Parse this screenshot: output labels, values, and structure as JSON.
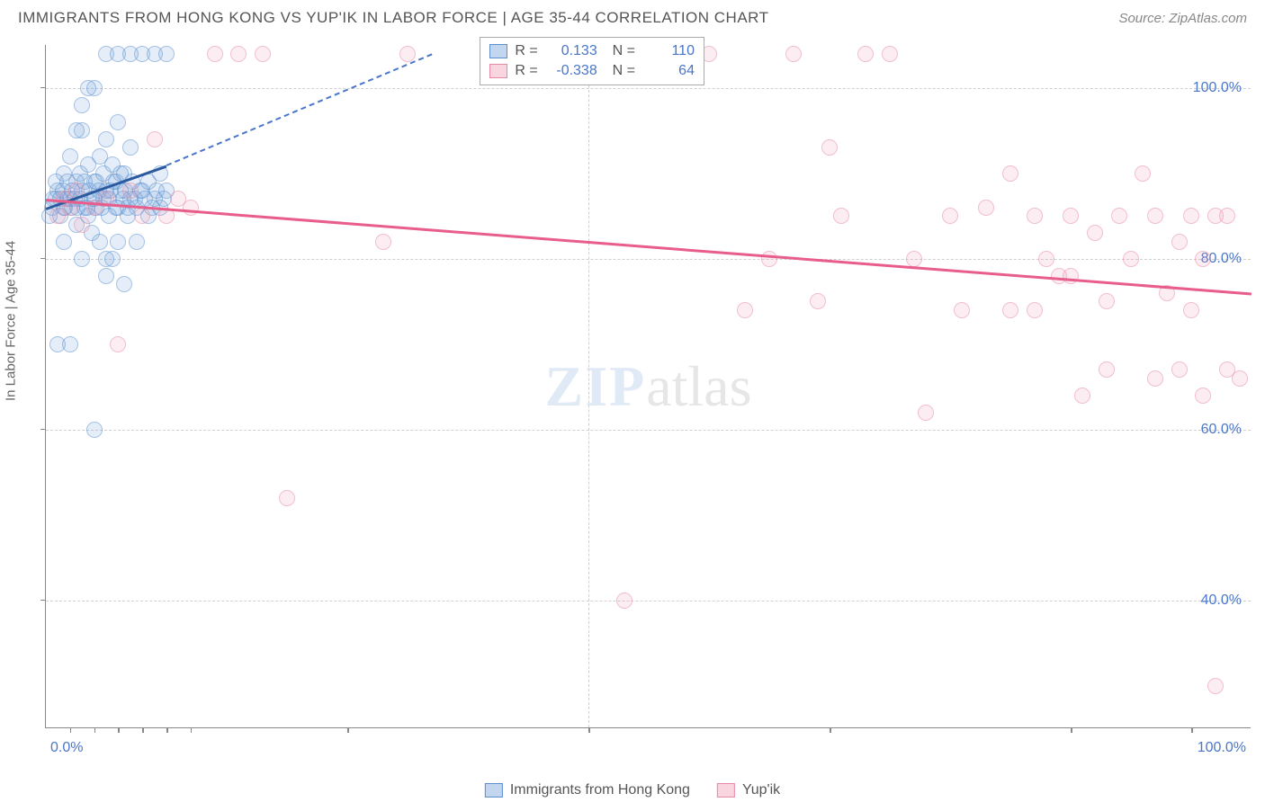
{
  "title": "IMMIGRANTS FROM HONG KONG VS YUP'IK IN LABOR FORCE | AGE 35-44 CORRELATION CHART",
  "source": "Source: ZipAtlas.com",
  "ylabel": "In Labor Force | Age 35-44",
  "watermark_zip": "ZIP",
  "watermark_atlas": "atlas",
  "chart": {
    "type": "scatter",
    "xlim": [
      0,
      100
    ],
    "ylim": [
      25,
      105
    ],
    "y_ticks": [
      40,
      60,
      80,
      100
    ],
    "y_tick_labels": [
      "40.0%",
      "60.0%",
      "80.0%",
      "100.0%"
    ],
    "x_minor_ticks": [
      2,
      4,
      6,
      8,
      10,
      12,
      25,
      45,
      65,
      85,
      95
    ],
    "x_tick_labels": {
      "left": "0.0%",
      "right": "100.0%"
    },
    "background_color": "#ffffff",
    "grid_color": "#d0d0d0",
    "series": [
      {
        "id": "s1",
        "name": "Immigrants from Hong Kong",
        "color_fill": "rgba(120,165,220,0.35)",
        "color_stroke": "#5b8fd0",
        "r_value": "0.133",
        "n_value": "110",
        "trend": {
          "x1": 0,
          "y1": 86,
          "x2": 10,
          "y2": 91,
          "color": "#2c5aa0"
        },
        "trend_extrapolate": {
          "x1": 10,
          "y1": 91,
          "x2": 32,
          "y2": 104,
          "color": "#4a76c9"
        },
        "points": [
          [
            0.5,
            86
          ],
          [
            0.8,
            87
          ],
          [
            1,
            88
          ],
          [
            1.2,
            85
          ],
          [
            1.5,
            90
          ],
          [
            1.5,
            86
          ],
          [
            1.8,
            87
          ],
          [
            2,
            87
          ],
          [
            2,
            92
          ],
          [
            2.2,
            86
          ],
          [
            2.5,
            89
          ],
          [
            2.5,
            84
          ],
          [
            2.8,
            90
          ],
          [
            3,
            88
          ],
          [
            3,
            95
          ],
          [
            3,
            98
          ],
          [
            3.2,
            86
          ],
          [
            3.5,
            91
          ],
          [
            3.5,
            85
          ],
          [
            3.8,
            83
          ],
          [
            4,
            89
          ],
          [
            4,
            87
          ],
          [
            4,
            100
          ],
          [
            4.2,
            86
          ],
          [
            4.5,
            92
          ],
          [
            4.5,
            82
          ],
          [
            4.8,
            87
          ],
          [
            5,
            88
          ],
          [
            5,
            94
          ],
          [
            5,
            104
          ],
          [
            5,
            78
          ],
          [
            5.2,
            85
          ],
          [
            5.5,
            91
          ],
          [
            5.5,
            80
          ],
          [
            5.8,
            89
          ],
          [
            6,
            86
          ],
          [
            6,
            96
          ],
          [
            6,
            104
          ],
          [
            6.2,
            88
          ],
          [
            6.5,
            90
          ],
          [
            6.5,
            77
          ],
          [
            6.8,
            85
          ],
          [
            7,
            87
          ],
          [
            7,
            93
          ],
          [
            7,
            104
          ],
          [
            7.5,
            86
          ],
          [
            7.5,
            82
          ],
          [
            8,
            88
          ],
          [
            8,
            104
          ],
          [
            8.5,
            85
          ],
          [
            9,
            87
          ],
          [
            9,
            104
          ],
          [
            9.5,
            86
          ],
          [
            10,
            88
          ],
          [
            10,
            104
          ],
          [
            1,
            70
          ],
          [
            2,
            70
          ],
          [
            4,
            60
          ],
          [
            5,
            80
          ],
          [
            6,
            82
          ],
          [
            3,
            80
          ],
          [
            1.5,
            82
          ],
          [
            2.5,
            95
          ],
          [
            3.5,
            100
          ],
          [
            0.3,
            85
          ],
          [
            0.6,
            87
          ],
          [
            0.8,
            89
          ],
          [
            1.2,
            87
          ],
          [
            1.4,
            88
          ],
          [
            1.6,
            86
          ],
          [
            1.8,
            89
          ],
          [
            2.2,
            88
          ],
          [
            2.4,
            87
          ],
          [
            2.6,
            86
          ],
          [
            2.8,
            87
          ],
          [
            3.2,
            89
          ],
          [
            3.4,
            86
          ],
          [
            3.6,
            88
          ],
          [
            3.8,
            87
          ],
          [
            4.2,
            89
          ],
          [
            4.4,
            88
          ],
          [
            4.6,
            86
          ],
          [
            4.8,
            90
          ],
          [
            5.2,
            87
          ],
          [
            5.4,
            88
          ],
          [
            5.6,
            89
          ],
          [
            5.8,
            86
          ],
          [
            6.2,
            90
          ],
          [
            6.4,
            87
          ],
          [
            6.6,
            88
          ],
          [
            6.8,
            86
          ],
          [
            7.2,
            89
          ],
          [
            7.4,
            87
          ],
          [
            7.8,
            88
          ],
          [
            8.2,
            87
          ],
          [
            8.5,
            89
          ],
          [
            8.8,
            86
          ],
          [
            9.2,
            88
          ],
          [
            9.5,
            90
          ],
          [
            9.8,
            87
          ]
        ]
      },
      {
        "id": "s2",
        "name": "Yup'ik",
        "color_fill": "rgba(240,150,175,0.3)",
        "color_stroke": "#e68aa5",
        "r_value": "-0.338",
        "n_value": "64",
        "trend": {
          "x1": 0,
          "y1": 87,
          "x2": 100,
          "y2": 76,
          "color": "#e85d8a"
        },
        "points": [
          [
            1,
            85
          ],
          [
            2,
            86
          ],
          [
            3,
            84
          ],
          [
            5,
            87
          ],
          [
            6,
            70
          ],
          [
            9,
            94
          ],
          [
            10,
            85
          ],
          [
            12,
            86
          ],
          [
            14,
            104
          ],
          [
            16,
            104
          ],
          [
            18,
            104
          ],
          [
            20,
            52
          ],
          [
            28,
            82
          ],
          [
            30,
            104
          ],
          [
            48,
            40
          ],
          [
            55,
            104
          ],
          [
            58,
            74
          ],
          [
            60,
            80
          ],
          [
            62,
            104
          ],
          [
            64,
            75
          ],
          [
            65,
            93
          ],
          [
            66,
            85
          ],
          [
            68,
            104
          ],
          [
            70,
            104
          ],
          [
            72,
            80
          ],
          [
            73,
            62
          ],
          [
            75,
            85
          ],
          [
            76,
            74
          ],
          [
            78,
            86
          ],
          [
            80,
            74
          ],
          [
            80,
            90
          ],
          [
            82,
            85
          ],
          [
            82,
            74
          ],
          [
            83,
            80
          ],
          [
            84,
            78
          ],
          [
            85,
            78
          ],
          [
            85,
            85
          ],
          [
            86,
            64
          ],
          [
            87,
            83
          ],
          [
            88,
            75
          ],
          [
            88,
            67
          ],
          [
            89,
            85
          ],
          [
            90,
            80
          ],
          [
            91,
            90
          ],
          [
            92,
            66
          ],
          [
            92,
            85
          ],
          [
            93,
            76
          ],
          [
            94,
            82
          ],
          [
            94,
            67
          ],
          [
            95,
            85
          ],
          [
            95,
            74
          ],
          [
            96,
            64
          ],
          [
            96,
            80
          ],
          [
            97,
            85
          ],
          [
            97,
            30
          ],
          [
            98,
            67
          ],
          [
            98,
            85
          ],
          [
            99,
            66
          ],
          [
            1.5,
            87
          ],
          [
            2.5,
            88
          ],
          [
            4,
            86
          ],
          [
            7,
            88
          ],
          [
            8,
            85
          ],
          [
            11,
            87
          ]
        ]
      }
    ]
  },
  "legend_labels": {
    "r": "R =",
    "n": "N ="
  }
}
